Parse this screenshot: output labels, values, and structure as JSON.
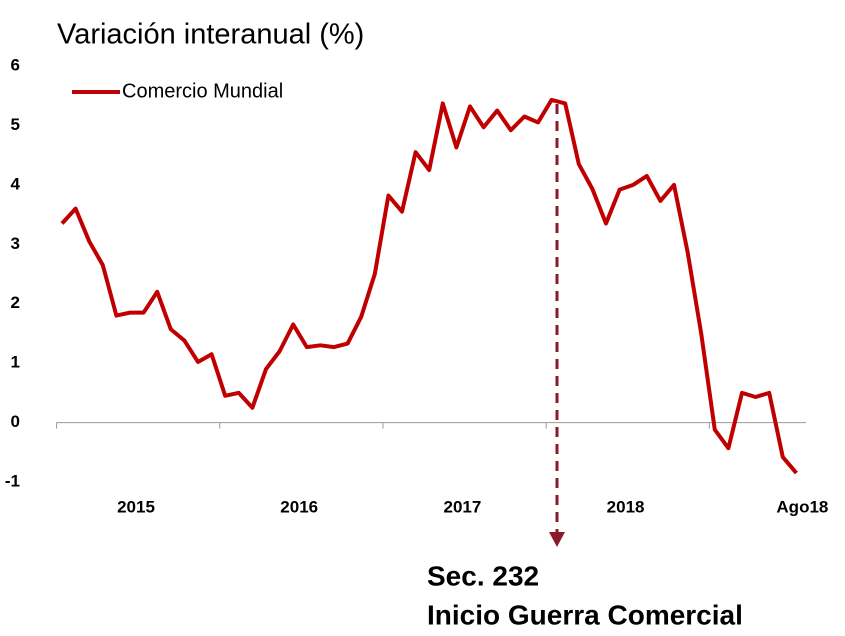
{
  "chart_data": {
    "type": "line",
    "title": "Variación interanual (%)",
    "categories": [
      null,
      null,
      null,
      null,
      null,
      "2015",
      null,
      null,
      null,
      null,
      null,
      null,
      null,
      null,
      null,
      null,
      null,
      "2016",
      null,
      null,
      null,
      null,
      null,
      null,
      null,
      null,
      null,
      null,
      null,
      "2017",
      null,
      null,
      null,
      null,
      null,
      null,
      null,
      null,
      null,
      null,
      null,
      "2018",
      null,
      null,
      null,
      null,
      null,
      null,
      null,
      null,
      null,
      null,
      null,
      null,
      "Ago18"
    ],
    "series": [
      {
        "name": "Comercio Mundial",
        "color": "#c00000",
        "values": [
          3.35,
          3.6,
          3.05,
          2.65,
          1.8,
          1.85,
          1.85,
          2.2,
          1.57,
          1.38,
          1.02,
          1.15,
          0.45,
          0.5,
          0.25,
          0.9,
          1.2,
          1.65,
          1.27,
          1.3,
          1.27,
          1.33,
          1.78,
          2.5,
          3.82,
          3.55,
          4.55,
          4.25,
          5.37,
          4.63,
          5.32,
          4.97,
          5.25,
          4.92,
          5.15,
          5.05,
          5.43,
          5.37,
          4.35,
          3.93,
          3.35,
          3.92,
          4.0,
          4.15,
          3.73,
          4.0,
          2.87,
          1.5,
          -0.12,
          -0.43,
          0.5,
          0.43,
          0.5,
          -0.58,
          -0.85
        ]
      }
    ],
    "ylim": [
      -1,
      6
    ],
    "yticks": [
      -1,
      0,
      1,
      2,
      3,
      4,
      5,
      6
    ],
    "legend": "upper left",
    "annotation": [
      "Sec. 232",
      "Inicio Guerra Comercial"
    ]
  }
}
